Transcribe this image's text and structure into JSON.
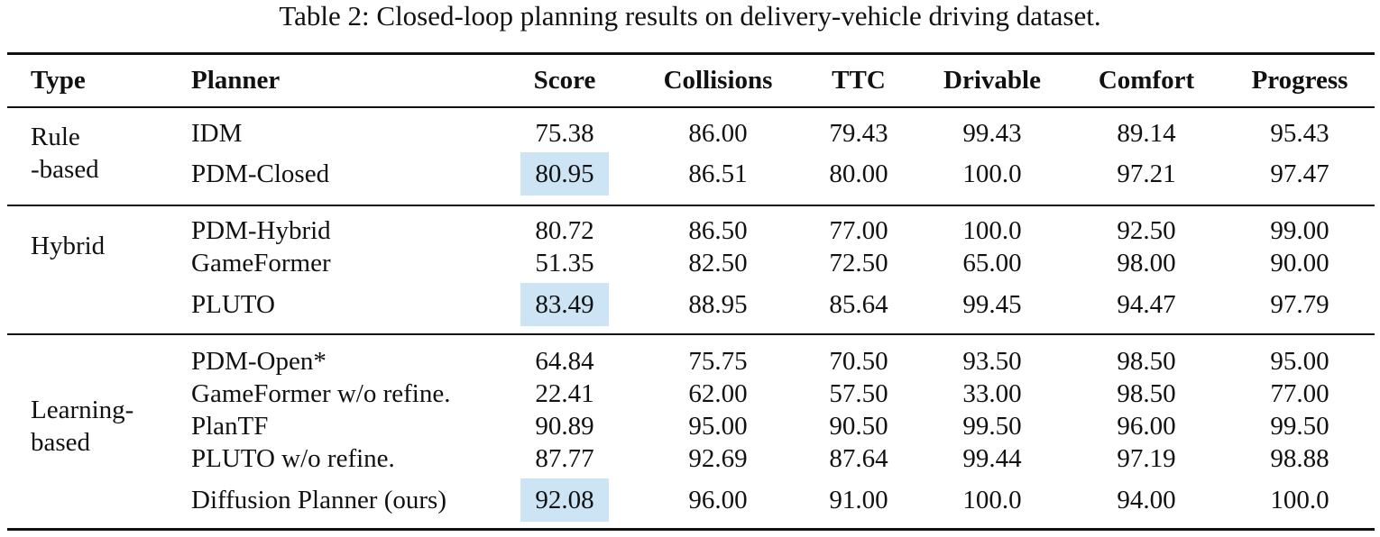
{
  "caption": {
    "label": "Table 2:",
    "text": "Closed-loop planning results on delivery-vehicle driving dataset."
  },
  "headers": {
    "type": "Type",
    "planner": "Planner",
    "score": "Score",
    "collisions": "Collisions",
    "ttc": "TTC",
    "drivable": "Drivable",
    "comfort": "Comfort",
    "progress": "Progress"
  },
  "groups": [
    {
      "type_lines": [
        "Rule",
        "-based"
      ],
      "rows": [
        {
          "planner": "IDM",
          "score": "75.38",
          "collisions": "86.00",
          "ttc": "79.43",
          "drivable": "99.43",
          "comfort": "89.14",
          "progress": "95.43",
          "best": false
        },
        {
          "planner": "PDM-Closed",
          "score": "80.95",
          "collisions": "86.51",
          "ttc": "80.00",
          "drivable": "100.0",
          "comfort": "97.21",
          "progress": "97.47",
          "best": true
        }
      ]
    },
    {
      "type_lines": [
        "Hybrid"
      ],
      "rows": [
        {
          "planner": "PDM-Hybrid",
          "score": "80.72",
          "collisions": "86.50",
          "ttc": "77.00",
          "drivable": "100.0",
          "comfort": "92.50",
          "progress": "99.00",
          "best": false
        },
        {
          "planner": "GameFormer",
          "score": "51.35",
          "collisions": "82.50",
          "ttc": "72.50",
          "drivable": "65.00",
          "comfort": "98.00",
          "progress": "90.00",
          "best": false
        },
        {
          "planner": "PLUTO",
          "score": "83.49",
          "collisions": "88.95",
          "ttc": "85.64",
          "drivable": "99.45",
          "comfort": "94.47",
          "progress": "97.79",
          "best": true
        }
      ]
    },
    {
      "type_lines": [
        "Learning-",
        "based"
      ],
      "rows": [
        {
          "planner": "PDM-Open*",
          "score": "64.84",
          "collisions": "75.75",
          "ttc": "70.50",
          "drivable": "93.50",
          "comfort": "98.50",
          "progress": "95.00",
          "best": false
        },
        {
          "planner": "GameFormer w/o refine.",
          "score": "22.41",
          "collisions": "62.00",
          "ttc": "57.50",
          "drivable": "33.00",
          "comfort": "98.50",
          "progress": "77.00",
          "best": false
        },
        {
          "planner": "PlanTF",
          "score": "90.89",
          "collisions": "95.00",
          "ttc": "90.50",
          "drivable": "99.50",
          "comfort": "96.00",
          "progress": "99.50",
          "best": false
        },
        {
          "planner": "PLUTO w/o refine.",
          "score": "87.77",
          "collisions": "92.69",
          "ttc": "87.64",
          "drivable": "99.44",
          "comfort": "97.19",
          "progress": "98.88",
          "best": false
        },
        {
          "planner": "Diffusion Planner (ours)",
          "score": "92.08",
          "collisions": "96.00",
          "ttc": "91.00",
          "drivable": "100.0",
          "comfort": "94.00",
          "progress": "100.0",
          "best": true
        }
      ]
    }
  ],
  "colors": {
    "highlight": "#cce4f4",
    "text": "#111111"
  }
}
